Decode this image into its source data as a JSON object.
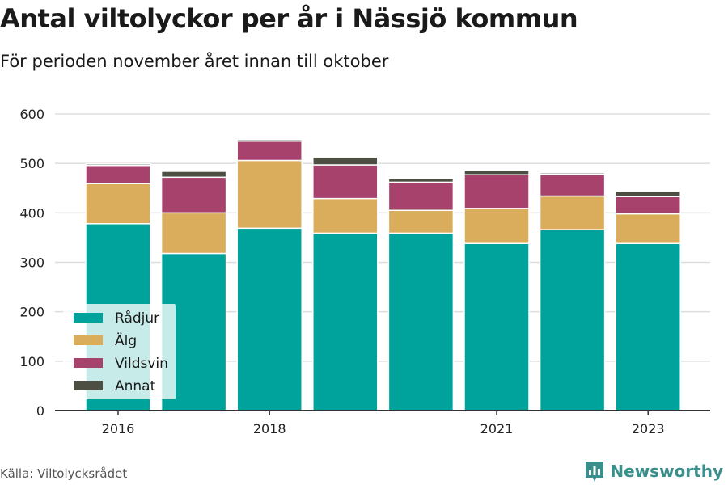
{
  "title": "Antal viltolyckor per år i Nässjö kommun",
  "subtitle": "För perioden november året innan till oktober",
  "source": "Källa: Viltolycksrådet",
  "brand": "Newsworthy",
  "colors": {
    "grid": "#dddddd",
    "axis": "#333333",
    "legend_bg": "#ffffff",
    "brand": "#3a8f8c"
  },
  "chart_data": {
    "type": "bar",
    "stacked": true,
    "categories": [
      "2016",
      "2017",
      "2018",
      "2019",
      "2020",
      "2021",
      "2022",
      "2023"
    ],
    "x_tick_labels": [
      "2016",
      "",
      "2018",
      "",
      "",
      "2021",
      "",
      "2023"
    ],
    "series": [
      {
        "name": "Rådjur",
        "color": "#00a39b",
        "values": [
          378,
          318,
          369,
          359,
          359,
          338,
          366,
          338
        ]
      },
      {
        "name": "Älg",
        "color": "#d9ad5b",
        "values": [
          81,
          82,
          137,
          70,
          46,
          71,
          68,
          60
        ]
      },
      {
        "name": "Vildsvin",
        "color": "#a6426b",
        "values": [
          37,
          72,
          39,
          68,
          57,
          68,
          44,
          35
        ]
      },
      {
        "name": "Annat",
        "color": "#4e4f43",
        "values": [
          3,
          12,
          3,
          16,
          7,
          9,
          3,
          11
        ]
      }
    ],
    "ylim": [
      0,
      600
    ],
    "y_ticks": [
      0,
      100,
      200,
      300,
      400,
      500,
      600
    ],
    "grid": true,
    "legend_position": "bottom-left"
  }
}
